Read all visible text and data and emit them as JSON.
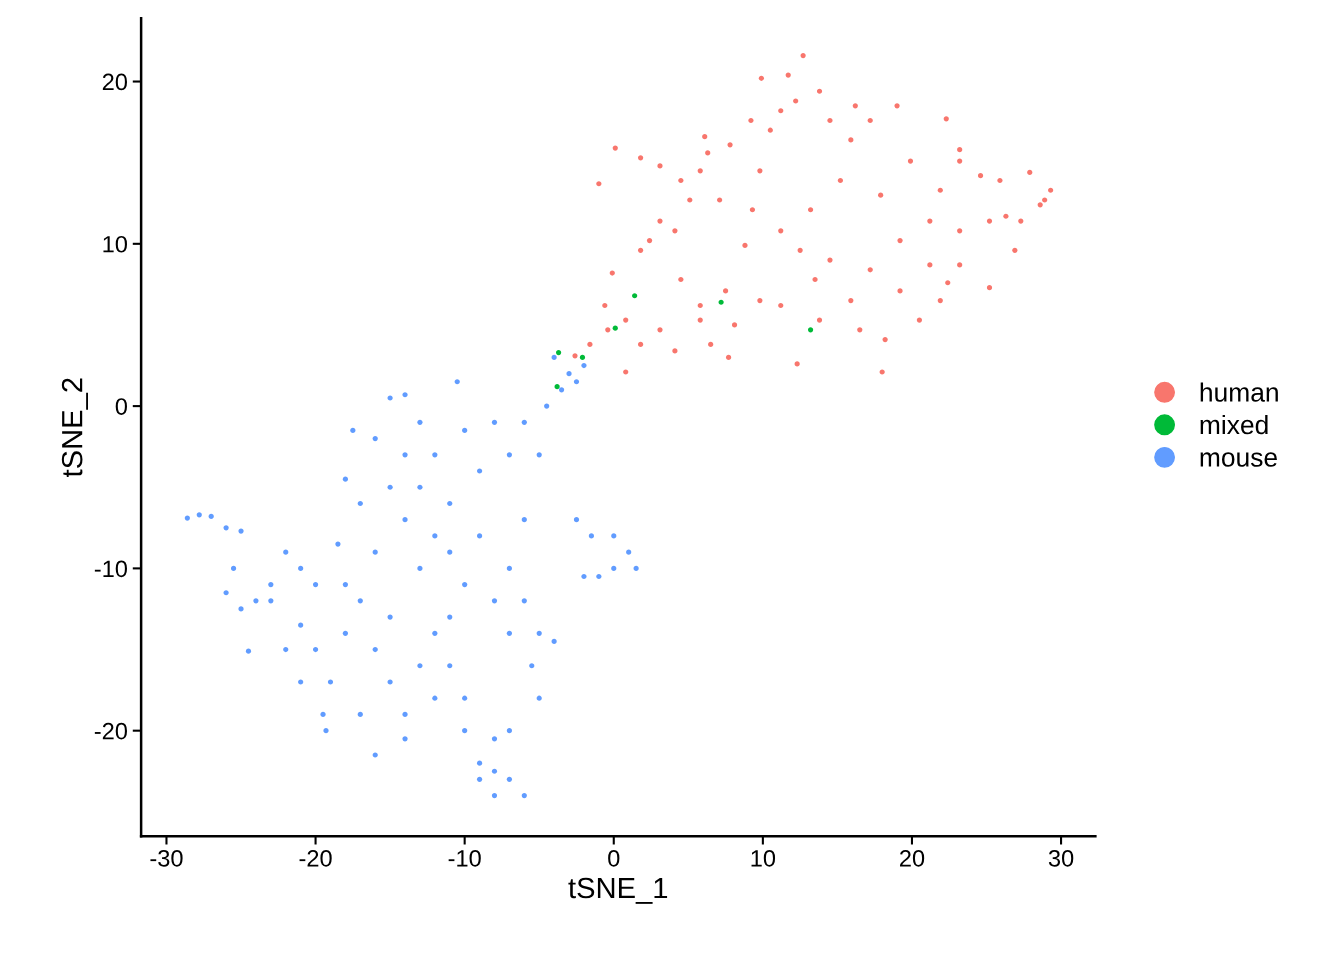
{
  "chart_data": {
    "type": "scatter",
    "xlabel": "tSNE_1",
    "ylabel": "tSNE_2",
    "xlim": [
      -31.7,
      32.3
    ],
    "ylim": [
      -26.5,
      23.9
    ],
    "xticks": [
      -30,
      -20,
      -10,
      0,
      10,
      20,
      30
    ],
    "yticks": [
      -20,
      -10,
      0,
      10,
      20
    ],
    "grid": false,
    "legend": "right",
    "marker": "circle",
    "series": [
      {
        "name": "human",
        "color": "#f8766d",
        "x": [
          0.8,
          -0.6,
          -0.1,
          -1,
          0.1,
          1.8,
          3.1,
          6.1,
          6.3,
          5.1,
          3.1,
          1.8,
          4.5,
          5.8,
          7.7,
          6.5,
          8.1,
          8.8,
          9.3,
          9.8,
          9.9,
          11.7,
          12.7,
          12.2,
          13.8,
          16.2,
          19.0,
          22.3,
          23.2,
          24.6,
          25.9,
          27.9,
          29.3,
          28.6,
          26.9,
          25.2,
          23.2,
          22.4,
          20.5,
          18.2,
          18.0,
          16.5,
          13.8,
          12.3,
          11.2,
          15.9,
          17.2,
          19.2,
          21.2,
          23.2,
          25.2,
          17.9,
          15.2,
          13.2,
          11.2,
          12.5,
          14.5,
          10.5,
          15.9,
          19.9,
          21.9,
          2.4,
          0.8,
          3.1,
          1.8,
          -1.6,
          -2.6,
          -0.4,
          4.1,
          5.8,
          7.5,
          9.8,
          13.5,
          19.2,
          21.9,
          21.2,
          7.1,
          4.1,
          5.8,
          4.5,
          7.8,
          9.2,
          11.2,
          14.5,
          17.2,
          23.2,
          26.3,
          27.3,
          28.9
        ],
        "values": [
          2.1,
          6.2,
          8.2,
          13.7,
          15.9,
          15.3,
          14.8,
          16.6,
          15.6,
          12.7,
          11.4,
          9.6,
          7.8,
          5.3,
          3.0,
          3.8,
          5.0,
          9.9,
          12.1,
          14.5,
          20.2,
          20.4,
          21.6,
          18.8,
          19.4,
          18.5,
          18.5,
          17.7,
          15.8,
          14.2,
          13.9,
          14.4,
          13.3,
          12.4,
          9.6,
          7.3,
          8.7,
          7.6,
          5.3,
          4.1,
          2.1,
          4.7,
          5.3,
          2.6,
          6.2,
          6.5,
          8.4,
          10.2,
          11.4,
          10.8,
          11.4,
          13.0,
          13.9,
          12.1,
          10.8,
          9.6,
          9.0,
          17.0,
          16.4,
          15.1,
          13.3,
          10.2,
          5.3,
          4.7,
          3.8,
          3.8,
          3.1,
          4.7,
          3.4,
          6.2,
          7.1,
          6.5,
          7.8,
          7.1,
          6.5,
          8.7,
          12.7,
          10.8,
          14.5,
          13.9,
          16.1,
          17.6,
          18.2,
          17.6,
          17.6,
          15.1,
          11.7,
          11.4,
          12.7
        ]
      },
      {
        "name": "mixed",
        "color": "#00ba38",
        "x": [
          1.4,
          7.2,
          0.1,
          -3.7,
          -2.1,
          -3.8,
          13.2
        ],
        "values": [
          6.8,
          6.4,
          4.8,
          3.3,
          3.0,
          1.2,
          4.7
        ]
      },
      {
        "name": "mouse",
        "color": "#619cff",
        "x": [
          -28.6,
          -27.8,
          -27,
          -26,
          -25,
          -25.5,
          -26,
          -25,
          -24.5,
          -23,
          -22,
          -21,
          -21,
          -20,
          -20,
          -21,
          -19.5,
          -19.3,
          -18,
          -18,
          -18.5,
          -18,
          -17.5,
          -16,
          -15,
          -14,
          -13,
          -12,
          -10.5,
          -10,
          -9,
          -8,
          -7,
          -6,
          -6,
          -5,
          -4.5,
          -3.5,
          -3,
          -2,
          -2.5,
          -4,
          -2.5,
          -1.5,
          0,
          1,
          1.5,
          0,
          -1,
          -2,
          -5,
          -4,
          -5,
          -5.5,
          -6,
          -7,
          -7,
          -7,
          -6,
          -7,
          -8,
          -8,
          -9,
          -9,
          -8,
          -10,
          -10,
          -11,
          -11,
          -12,
          -12,
          -13,
          -13,
          -14,
          -14,
          -15,
          -15,
          -16,
          -16,
          -16,
          -17,
          -17,
          -14,
          -13,
          -12,
          -11,
          -10,
          -9,
          -8,
          -15,
          -17,
          -19,
          -22,
          -23,
          -24,
          -14,
          -11
        ],
        "values": [
          -6.9,
          -6.7,
          -6.8,
          -7.5,
          -7.7,
          -10,
          -11.5,
          -12.5,
          -15.1,
          -12,
          -9,
          -10,
          -13.5,
          -11,
          -15,
          -17,
          -19,
          -20,
          -14,
          -11,
          -8.5,
          -4.5,
          -1.5,
          -2,
          0.5,
          0.7,
          -1,
          -3,
          1.5,
          -1.5,
          -4,
          -1,
          -3,
          -1,
          -7,
          -3,
          0,
          1,
          2,
          2.5,
          1.5,
          3.0,
          -7,
          -8,
          -8,
          -9,
          -10,
          -10,
          -10.5,
          -10.5,
          -14,
          -14.5,
          -18,
          -16,
          -12,
          -10,
          -14,
          -20,
          -24,
          -23,
          -22.5,
          -24,
          -23,
          -22,
          -20.5,
          -18,
          -20,
          -16,
          -13,
          -14,
          -18,
          -16,
          -10,
          -19,
          -20.5,
          -17,
          -13,
          -21.5,
          -15,
          -9,
          -19,
          -12,
          -7,
          -5,
          -8,
          -6,
          -11,
          -8,
          -12,
          -5,
          -6,
          -17,
          -15,
          -11,
          -12,
          -3,
          -9
        ]
      }
    ]
  }
}
